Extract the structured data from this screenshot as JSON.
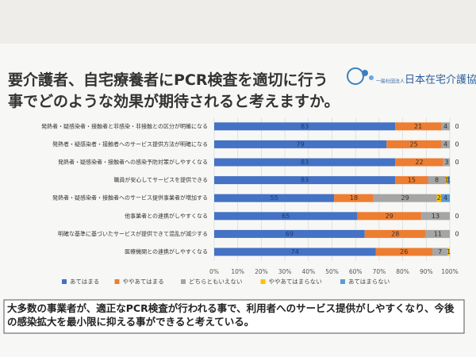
{
  "org": {
    "prefix": "一般社団法人",
    "name": "日本在宅介護協会"
  },
  "chart_data": {
    "type": "stacked100bar",
    "title": "要介護者、自宅療養者にPCR検査を適切に行う事でどのような効果が期待されると考えますか。",
    "categories": [
      "発熱者・疑感染者・接触者と非感染・非接触との区分が明確になる",
      "発熱者・疑感染者・接触者へのサービス提供方法が明確になる",
      "発熱者・疑感染者・接触者への感染予防対策がしやすくなる",
      "職員が安心してサービスを提供できる",
      "発熱者・疑感染者・接触者へのサービス提供事業者が増加する",
      "他事業者との連携がしやすくなる",
      "明確な基準に基づいたサービスが提供できて混乱が減少する",
      "医療機関との連携がしやすくなる"
    ],
    "series": [
      {
        "name": "あてはまる",
        "color": "#4472c4",
        "values": [
          83,
          79,
          83,
          83,
          55,
          65,
          69,
          74
        ]
      },
      {
        "name": "ややあてはまる",
        "color": "#ed7d31",
        "values": [
          21,
          25,
          22,
          15,
          18,
          29,
          28,
          26
        ]
      },
      {
        "name": "どちらともいえない",
        "color": "#a5a5a5",
        "values": [
          4,
          4,
          3,
          8,
          29,
          13,
          11,
          7
        ]
      },
      {
        "name": "ややあてはまらない",
        "color": "#ffc000",
        "values": [
          0,
          0,
          0,
          1,
          2,
          0,
          0,
          1
        ]
      },
      {
        "name": "あてはまらない",
        "color": "#5b9bd5",
        "values": [
          null,
          null,
          null,
          1,
          4,
          null,
          null,
          null
        ]
      }
    ],
    "xlim": [
      0,
      100
    ],
    "xticks": [
      {
        "value": 0,
        "label": "0%"
      },
      {
        "value": 10,
        "label": "10%"
      },
      {
        "value": 20,
        "label": "20%"
      },
      {
        "value": 30,
        "label": "30%"
      },
      {
        "value": 40,
        "label": "40%"
      },
      {
        "value": 50,
        "label": "50%"
      },
      {
        "value": 60,
        "label": "60%"
      },
      {
        "value": 70,
        "label": "70%"
      },
      {
        "value": 80,
        "label": "80%"
      },
      {
        "value": 90,
        "label": "90%"
      },
      {
        "value": 100,
        "label": "100%"
      }
    ],
    "grid": true,
    "legend": "bottom",
    "note": "大多数の事業者が、適正なPCR検査が行われる事で、利用者へのサービス提供がしやすくなり、今後の感染拡大を最小限に抑える事ができると考えている。"
  }
}
